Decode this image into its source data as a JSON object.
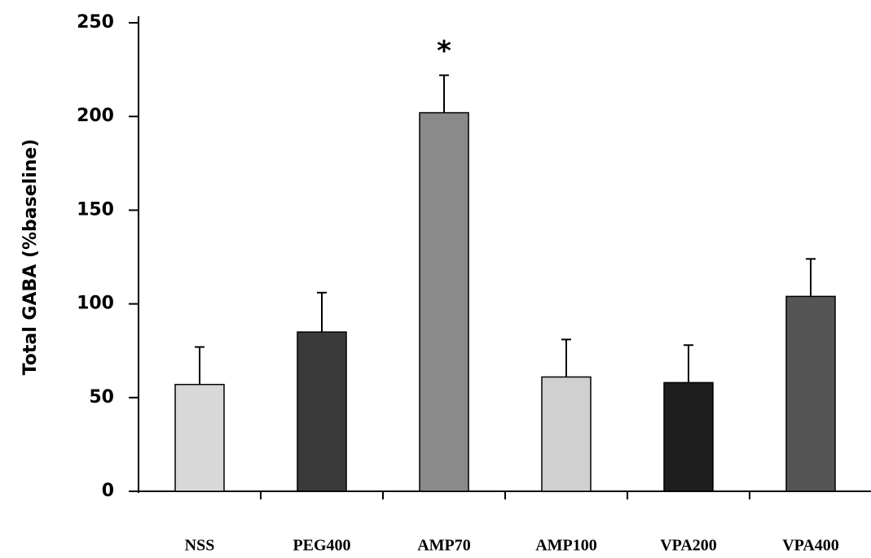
{
  "chart_data": {
    "type": "bar",
    "y_label": "Total GABA (%baseline)",
    "categories": [
      "NSS",
      "PEG400",
      "AMP70",
      "AMP100",
      "VPA200",
      "VPA400"
    ],
    "values": [
      57,
      85,
      202,
      61,
      58,
      104
    ],
    "errors": [
      20,
      21,
      20,
      20,
      20,
      20
    ],
    "colors": [
      "#d8d8d8",
      "#3a3a3a",
      "#8a8a8a",
      "#d0d0d0",
      "#1e1e1e",
      "#555555"
    ],
    "ylim": [
      0,
      250
    ],
    "yticks": [
      0,
      50,
      100,
      150,
      200,
      250
    ],
    "annotations": [
      {
        "text": "*",
        "category": "AMP70"
      }
    ]
  }
}
